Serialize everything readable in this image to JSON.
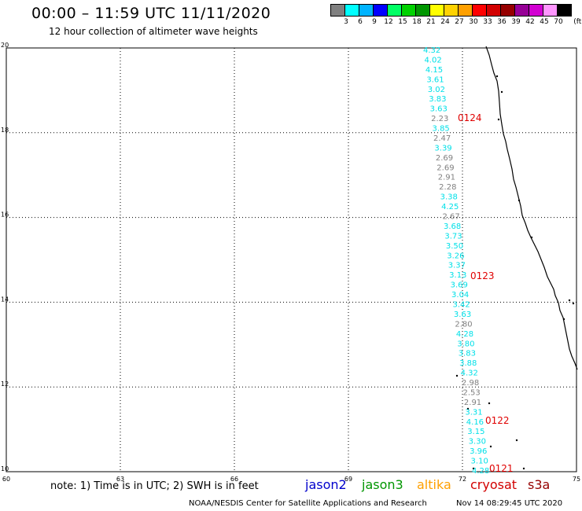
{
  "header": {
    "title": "00:00 – 11:59 UTC 11/11/2020",
    "subtitle": "12 hour collection of altimeter wave heights"
  },
  "colorbar": {
    "unit": "(ft)",
    "colors": [
      "#808080",
      "#00ffff",
      "#00b4ff",
      "#0000ff",
      "#00ff64",
      "#00d200",
      "#009600",
      "#ffff00",
      "#ffd200",
      "#ffa000",
      "#ff0000",
      "#d20000",
      "#960000",
      "#960096",
      "#d200d2",
      "#ff96ff",
      "#000000"
    ],
    "labels": [
      "3",
      "6",
      "9",
      "12",
      "15",
      "18",
      "21",
      "24",
      "27",
      "30",
      "33",
      "36",
      "39",
      "42",
      "45",
      "70"
    ]
  },
  "axes": {
    "x_ticks": [
      "60",
      "63",
      "66",
      "69",
      "72",
      "75"
    ],
    "y_ticks": [
      "10",
      "12",
      "14",
      "16",
      "18",
      "20"
    ]
  },
  "track": {
    "measurements": [
      {
        "v": "4.32",
        "c": "cyan"
      },
      {
        "v": "4.02",
        "c": "cyan"
      },
      {
        "v": "4.15",
        "c": "cyan"
      },
      {
        "v": "3.61",
        "c": "cyan"
      },
      {
        "v": "3.02",
        "c": "cyan"
      },
      {
        "v": "3.83",
        "c": "cyan"
      },
      {
        "v": "3.63",
        "c": "cyan"
      },
      {
        "v": "2.23",
        "c": "gray"
      },
      {
        "v": "3.85",
        "c": "cyan"
      },
      {
        "v": "2.47",
        "c": "gray"
      },
      {
        "v": "3.39",
        "c": "cyan"
      },
      {
        "v": "2.69",
        "c": "gray"
      },
      {
        "v": "2.69",
        "c": "gray"
      },
      {
        "v": "2.91",
        "c": "gray"
      },
      {
        "v": "2.28",
        "c": "gray"
      },
      {
        "v": "3.38",
        "c": "cyan"
      },
      {
        "v": "4.25",
        "c": "cyan"
      },
      {
        "v": "2.67",
        "c": "gray"
      },
      {
        "v": "3.68",
        "c": "cyan"
      },
      {
        "v": "3.73",
        "c": "cyan"
      },
      {
        "v": "3.50",
        "c": "cyan"
      },
      {
        "v": "3.26",
        "c": "cyan"
      },
      {
        "v": "3.37",
        "c": "cyan"
      },
      {
        "v": "3.13",
        "c": "cyan"
      },
      {
        "v": "3.69",
        "c": "cyan"
      },
      {
        "v": "3.04",
        "c": "cyan"
      },
      {
        "v": "3.42",
        "c": "cyan"
      },
      {
        "v": "3.63",
        "c": "cyan"
      },
      {
        "v": "2.80",
        "c": "gray"
      },
      {
        "v": "4.28",
        "c": "cyan"
      },
      {
        "v": "3.80",
        "c": "cyan"
      },
      {
        "v": "3.83",
        "c": "cyan"
      },
      {
        "v": "3.88",
        "c": "cyan"
      },
      {
        "v": "4.32",
        "c": "cyan"
      },
      {
        "v": "2.98",
        "c": "gray"
      },
      {
        "v": "2.53",
        "c": "gray"
      },
      {
        "v": "2.91",
        "c": "gray"
      },
      {
        "v": "3.31",
        "c": "cyan"
      },
      {
        "v": "4.16",
        "c": "cyan"
      },
      {
        "v": "3.15",
        "c": "cyan"
      },
      {
        "v": "3.30",
        "c": "cyan"
      },
      {
        "v": "3.96",
        "c": "cyan"
      },
      {
        "v": "3.10",
        "c": "cyan"
      },
      {
        "v": "4.28",
        "c": "cyan"
      }
    ],
    "time_labels": [
      "0124",
      "0123",
      "0122",
      "0121"
    ]
  },
  "footer": {
    "note": "note:  1) Time is in UTC;  2) SWH is in feet",
    "satellites": [
      {
        "name": "jason2",
        "color": "#0000cc"
      },
      {
        "name": "jason3",
        "color": "#009600"
      },
      {
        "name": "altika",
        "color": "#ffa000"
      },
      {
        "name": "cryosat",
        "color": "#d20000"
      },
      {
        "name": "s3a",
        "color": "#960000"
      }
    ],
    "credit": "NOAA/NESDIS Center for Satellite Applications and Research",
    "timestamp": "Nov 14 08:29:45 UTC 2020"
  }
}
